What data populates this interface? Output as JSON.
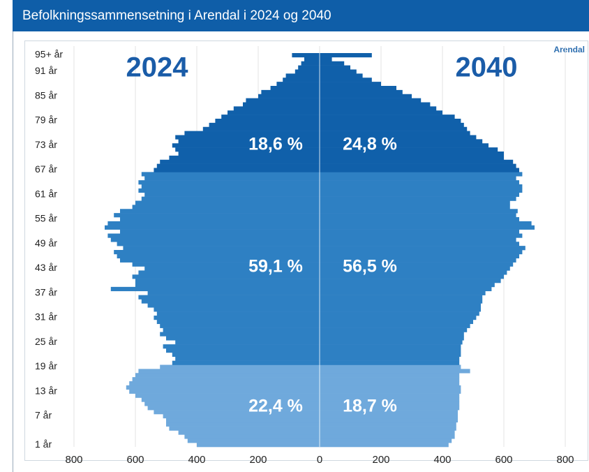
{
  "chart_data": {
    "type": "pyramid",
    "title": "Befolkningssammensetning i Arendal i 2024 og 2040",
    "source_label": "Arendal",
    "categories": [
      "1 år",
      null,
      null,
      null,
      null,
      null,
      null,
      "7 år",
      null,
      null,
      null,
      null,
      null,
      "13 år",
      null,
      null,
      null,
      null,
      null,
      "19 år",
      null,
      null,
      null,
      null,
      null,
      "25 år",
      null,
      null,
      null,
      null,
      null,
      "31 år",
      null,
      null,
      null,
      null,
      null,
      "37 år",
      null,
      null,
      null,
      null,
      null,
      "43 år",
      null,
      null,
      null,
      null,
      null,
      "49 år",
      null,
      null,
      null,
      null,
      null,
      "55 år",
      null,
      null,
      null,
      null,
      null,
      "61 år",
      null,
      null,
      null,
      null,
      null,
      "67 år",
      null,
      null,
      null,
      null,
      null,
      "73 år",
      null,
      null,
      null,
      null,
      null,
      "79 år",
      null,
      null,
      null,
      null,
      null,
      "85 år",
      null,
      null,
      null,
      null,
      null,
      "91 år",
      null,
      null,
      null,
      "95+ år"
    ],
    "series": [
      {
        "name": "2024",
        "side": "left",
        "values": [
          400,
          430,
          440,
          460,
          490,
          500,
          500,
          510,
          540,
          560,
          570,
          580,
          600,
          620,
          630,
          620,
          610,
          600,
          590,
          520,
          480,
          470,
          480,
          500,
          510,
          470,
          500,
          520,
          510,
          520,
          530,
          540,
          530,
          540,
          560,
          580,
          590,
          560,
          680,
          600,
          600,
          610,
          590,
          570,
          610,
          650,
          660,
          670,
          640,
          660,
          680,
          690,
          650,
          700,
          690,
          650,
          670,
          650,
          610,
          600,
          580,
          570,
          590,
          580,
          590,
          570,
          580,
          540,
          530,
          520,
          490,
          460,
          470,
          480,
          460,
          470,
          440,
          380,
          360,
          340,
          320,
          300,
          280,
          250,
          240,
          200,
          190,
          160,
          140,
          120,
          110,
          80,
          70,
          60,
          50,
          90
        ]
      },
      {
        "name": "2040",
        "side": "right",
        "values": [
          420,
          430,
          440,
          440,
          445,
          445,
          450,
          450,
          450,
          455,
          455,
          455,
          455,
          460,
          460,
          455,
          455,
          455,
          490,
          460,
          455,
          455,
          460,
          460,
          460,
          465,
          470,
          470,
          480,
          490,
          500,
          510,
          520,
          525,
          525,
          530,
          530,
          540,
          560,
          570,
          590,
          600,
          610,
          620,
          630,
          640,
          650,
          660,
          670,
          650,
          640,
          660,
          650,
          700,
          690,
          650,
          640,
          645,
          620,
          620,
          640,
          650,
          660,
          660,
          650,
          640,
          660,
          650,
          640,
          630,
          600,
          600,
          580,
          550,
          530,
          510,
          490,
          480,
          470,
          460,
          440,
          400,
          380,
          360,
          330,
          300,
          270,
          250,
          200,
          170,
          140,
          120,
          100,
          80,
          40,
          170
        ]
      }
    ],
    "groups": [
      {
        "first": 0,
        "color": "#6fa9dc",
        "shares": [
          "22,4 %",
          "18,7 %"
        ]
      },
      {
        "first": 20,
        "color": "#2e80c3",
        "shares": [
          "59,1 %",
          "56,5 %"
        ]
      },
      {
        "first": 67,
        "color": "#1060aa",
        "shares": [
          "18,6 %",
          "24,8 %"
        ]
      }
    ],
    "xlim": [
      -800,
      800
    ],
    "xticks": [
      {
        "value": -800,
        "label": "800"
      },
      {
        "value": -600,
        "label": "600"
      },
      {
        "value": -400,
        "label": "400"
      },
      {
        "value": -200,
        "label": "200"
      },
      0,
      200,
      400,
      600,
      800
    ],
    "grid": true
  }
}
